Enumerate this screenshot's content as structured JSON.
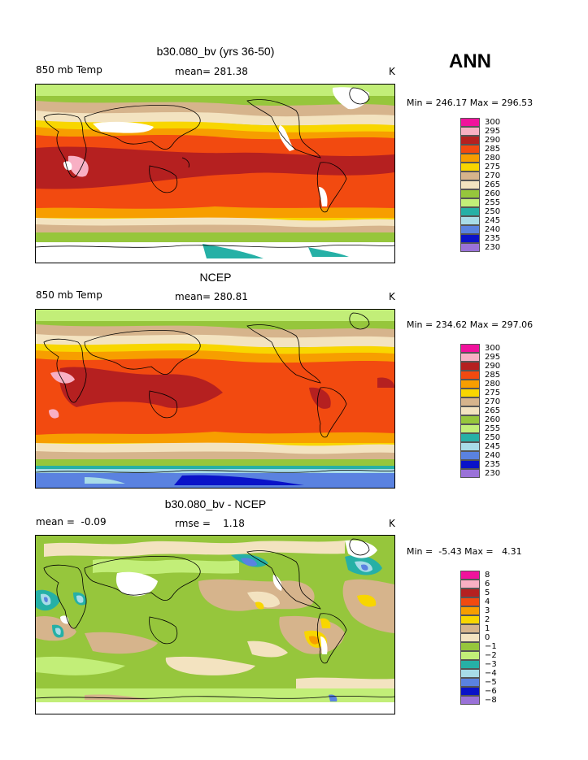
{
  "season_label": "ANN",
  "panels": [
    {
      "title": "b30.080_bv (yrs 36-50)",
      "left_label": "850 mb Temp",
      "mean_label": "mean= 281.38",
      "units": "K",
      "range_label": "Min = 246.17 Max = 296.53",
      "type": "field",
      "min": 246.17,
      "max": 296.53,
      "mean": 281.38
    },
    {
      "title": "NCEP",
      "left_label": "850 mb Temp",
      "mean_label": "mean= 280.81",
      "units": "K",
      "range_label": "Min = 234.62 Max = 297.06",
      "type": "field",
      "min": 234.62,
      "max": 297.06,
      "mean": 280.81
    },
    {
      "title": "b30.080_bv - NCEP",
      "left_label": "mean =  -0.09",
      "mean_label": "rmse =    1.18",
      "units": "K",
      "range_label": "Min =  -5.43 Max =   4.31",
      "type": "diff",
      "min": -5.43,
      "max": 4.31,
      "mean": -0.09,
      "rmse": 1.18
    }
  ],
  "legend_field": {
    "labels": [
      "300",
      "295",
      "290",
      "285",
      "280",
      "275",
      "270",
      "265",
      "260",
      "255",
      "250",
      "245",
      "240",
      "235",
      "230"
    ],
    "colors": [
      "#f0129c",
      "#f8b0c4",
      "#b52020",
      "#f24a10",
      "#f79e00",
      "#f8d600",
      "#d6b48c",
      "#f3e3c0",
      "#96c63c",
      "#c2ee78",
      "#26b0a6",
      "#a8dce8",
      "#5a82e0",
      "#0a12c8",
      "#9a72d8"
    ]
  },
  "legend_diff": {
    "labels": [
      "8",
      "6",
      "5",
      "4",
      "3",
      "2",
      "1",
      "0",
      "−1",
      "−2",
      "−3",
      "−4",
      "−5",
      "−6",
      "−8"
    ],
    "colors": [
      "#f0129c",
      "#f8b0c4",
      "#b52020",
      "#f24a10",
      "#f79e00",
      "#f8d600",
      "#d6b48c",
      "#f3e3c0",
      "#96c63c",
      "#c2ee78",
      "#26b0a6",
      "#a8dce8",
      "#5a82e0",
      "#0a12c8",
      "#9a72d8"
    ]
  }
}
